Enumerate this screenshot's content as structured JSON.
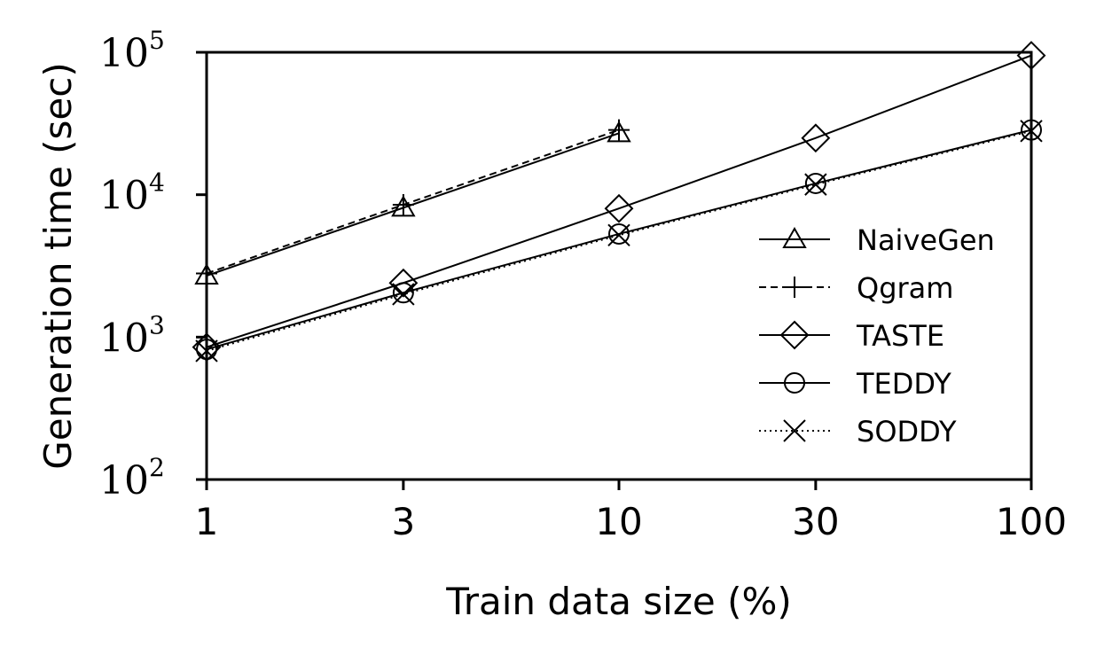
{
  "chart_data": {
    "type": "line",
    "xlabel": "Train data size (%)",
    "ylabel": "Generation time (sec)",
    "x_scale": "log",
    "y_scale": "log",
    "xlim": [
      1,
      100
    ],
    "ylim": [
      100,
      100000
    ],
    "x_ticks": [
      "1",
      "3",
      "10",
      "30",
      "100"
    ],
    "x_tick_values": [
      1,
      3,
      10,
      30,
      100
    ],
    "y_ticks": [
      {
        "base": "10",
        "exp": "2",
        "value": 100
      },
      {
        "base": "10",
        "exp": "3",
        "value": 1000
      },
      {
        "base": "10",
        "exp": "4",
        "value": 10000
      },
      {
        "base": "10",
        "exp": "5",
        "value": 100000
      }
    ],
    "grid": false,
    "legend_position": "right",
    "series": [
      {
        "name": "NaiveGen",
        "marker": "triangle",
        "dash": "solid",
        "points": [
          [
            1,
            2700
          ],
          [
            3,
            8100
          ],
          [
            10,
            27000
          ]
        ]
      },
      {
        "name": "Qgram",
        "marker": "plus",
        "dash": "dashed",
        "points": [
          [
            1,
            2800
          ],
          [
            3,
            8500
          ],
          [
            10,
            28500
          ]
        ]
      },
      {
        "name": "TASTE",
        "marker": "diamond",
        "dash": "solid",
        "points": [
          [
            1,
            850
          ],
          [
            3,
            2400
          ],
          [
            10,
            8000
          ],
          [
            30,
            25000
          ],
          [
            100,
            95000
          ]
        ]
      },
      {
        "name": "TEDDY",
        "marker": "circle",
        "dash": "solid",
        "points": [
          [
            1,
            820
          ],
          [
            3,
            2050
          ],
          [
            10,
            5300
          ],
          [
            30,
            12000
          ],
          [
            100,
            28500
          ]
        ]
      },
      {
        "name": "SODDY",
        "marker": "x",
        "dash": "dotted",
        "points": [
          [
            1,
            800
          ],
          [
            3,
            2000
          ],
          [
            10,
            5200
          ],
          [
            30,
            11800
          ],
          [
            100,
            28000
          ]
        ]
      }
    ]
  }
}
